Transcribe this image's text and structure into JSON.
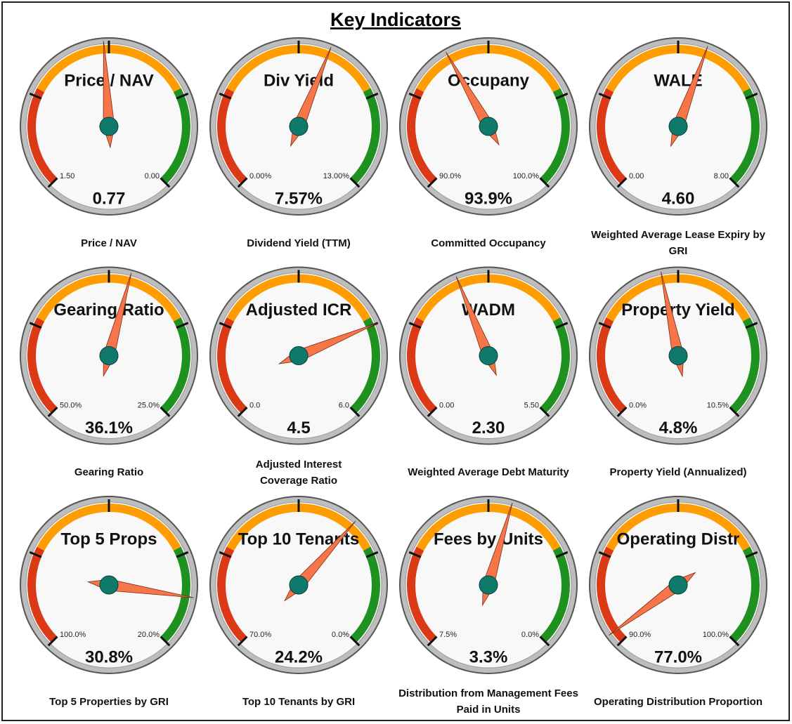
{
  "title": "Key Indicators",
  "colors": {
    "bands": [
      "#dc3a17",
      "#ff9d00",
      "#1f9120"
    ],
    "needle": "#f6764a",
    "hub": "#0f7a6c"
  },
  "chart_data": [
    {
      "type": "gauge",
      "title": "Price / NAV",
      "caption": "Price / NAV",
      "min": {
        "value": 1.5,
        "label": "1.50"
      },
      "max": {
        "value": 0,
        "label": "0.00"
      },
      "values": [
        0.77
      ]
    },
    {
      "type": "gauge",
      "title": "Div Yield",
      "caption": "Dividend Yield (TTM)",
      "min": {
        "value": 0,
        "label": "0.00%"
      },
      "max": {
        "value": 13,
        "label": "13.00%"
      },
      "values": [
        7.57
      ],
      "value_labels": [
        "7.57%"
      ]
    },
    {
      "type": "gauge",
      "title": "Occupany",
      "caption": "Committed Occupancy",
      "min": {
        "value": 90,
        "label": "90.0%"
      },
      "max": {
        "value": 100,
        "label": "100.0%"
      },
      "values": [
        93.9
      ],
      "value_labels": [
        "93.9%"
      ]
    },
    {
      "type": "gauge",
      "title": "WALE",
      "caption": "Weighted Average Lease Expiry by GRI",
      "min": {
        "value": 0,
        "label": "0.00"
      },
      "max": {
        "value": 8,
        "label": "8.00"
      },
      "values": [
        4.6
      ],
      "value_labels": [
        "4.60"
      ]
    },
    {
      "type": "gauge",
      "title": "Gearing Ratio",
      "caption": "Gearing Ratio",
      "min": {
        "value": 50,
        "label": "50.0%"
      },
      "max": {
        "value": 25,
        "label": "25.0%"
      },
      "values": [
        36.1
      ],
      "value_labels": [
        "36.1%"
      ]
    },
    {
      "type": "gauge",
      "title": "Adjusted ICR",
      "caption": "Adjusted Interest Coverage Ratio",
      "min": {
        "value": 0,
        "label": "0.0"
      },
      "max": {
        "value": 6,
        "label": "6.0"
      },
      "values": [
        4.5
      ]
    },
    {
      "type": "gauge",
      "title": "WADM",
      "caption": "Weighted Average Debt Maturity",
      "min": {
        "value": 0,
        "label": "0.00"
      },
      "max": {
        "value": 5.5,
        "label": "5.50"
      },
      "values": [
        2.3
      ],
      "value_labels": [
        "2.30"
      ]
    },
    {
      "type": "gauge",
      "title": "Property Yield",
      "caption": "Property Yield (Annualized)",
      "min": {
        "value": 0,
        "label": "0.0%"
      },
      "max": {
        "value": 10.5,
        "label": "10.5%"
      },
      "values": [
        4.8
      ],
      "value_labels": [
        "4.8%"
      ]
    },
    {
      "type": "gauge",
      "title": "Top 5 Props",
      "caption": "Top 5 Properties by GRI",
      "min": {
        "value": 100,
        "label": "100.0%"
      },
      "max": {
        "value": 20,
        "label": "20.0%"
      },
      "values": [
        30.8
      ],
      "value_labels": [
        "30.8%"
      ]
    },
    {
      "type": "gauge",
      "title": "Top 10 Tenants",
      "caption": "Top 10 Tenants by GRI",
      "min": {
        "value": 70,
        "label": "70.0%"
      },
      "max": {
        "value": 0,
        "label": "0.0%"
      },
      "values": [
        24.2
      ],
      "value_labels": [
        "24.2%"
      ]
    },
    {
      "type": "gauge",
      "title": "Fees by Units",
      "caption": "Distribution from Management Fees Paid in Units",
      "min": {
        "value": 7.5,
        "label": "7.5%"
      },
      "max": {
        "value": 0,
        "label": "0.0%"
      },
      "values": [
        3.3
      ],
      "value_labels": [
        "3.3%"
      ]
    },
    {
      "type": "gauge",
      "title": "Operating Distr",
      "caption": "Operating Distribution Proportion",
      "min": {
        "value": 90,
        "label": "90.0%"
      },
      "max": {
        "value": 100,
        "label": "100.0%"
      },
      "values": [
        77
      ],
      "value_labels": [
        "77.0%"
      ]
    }
  ]
}
